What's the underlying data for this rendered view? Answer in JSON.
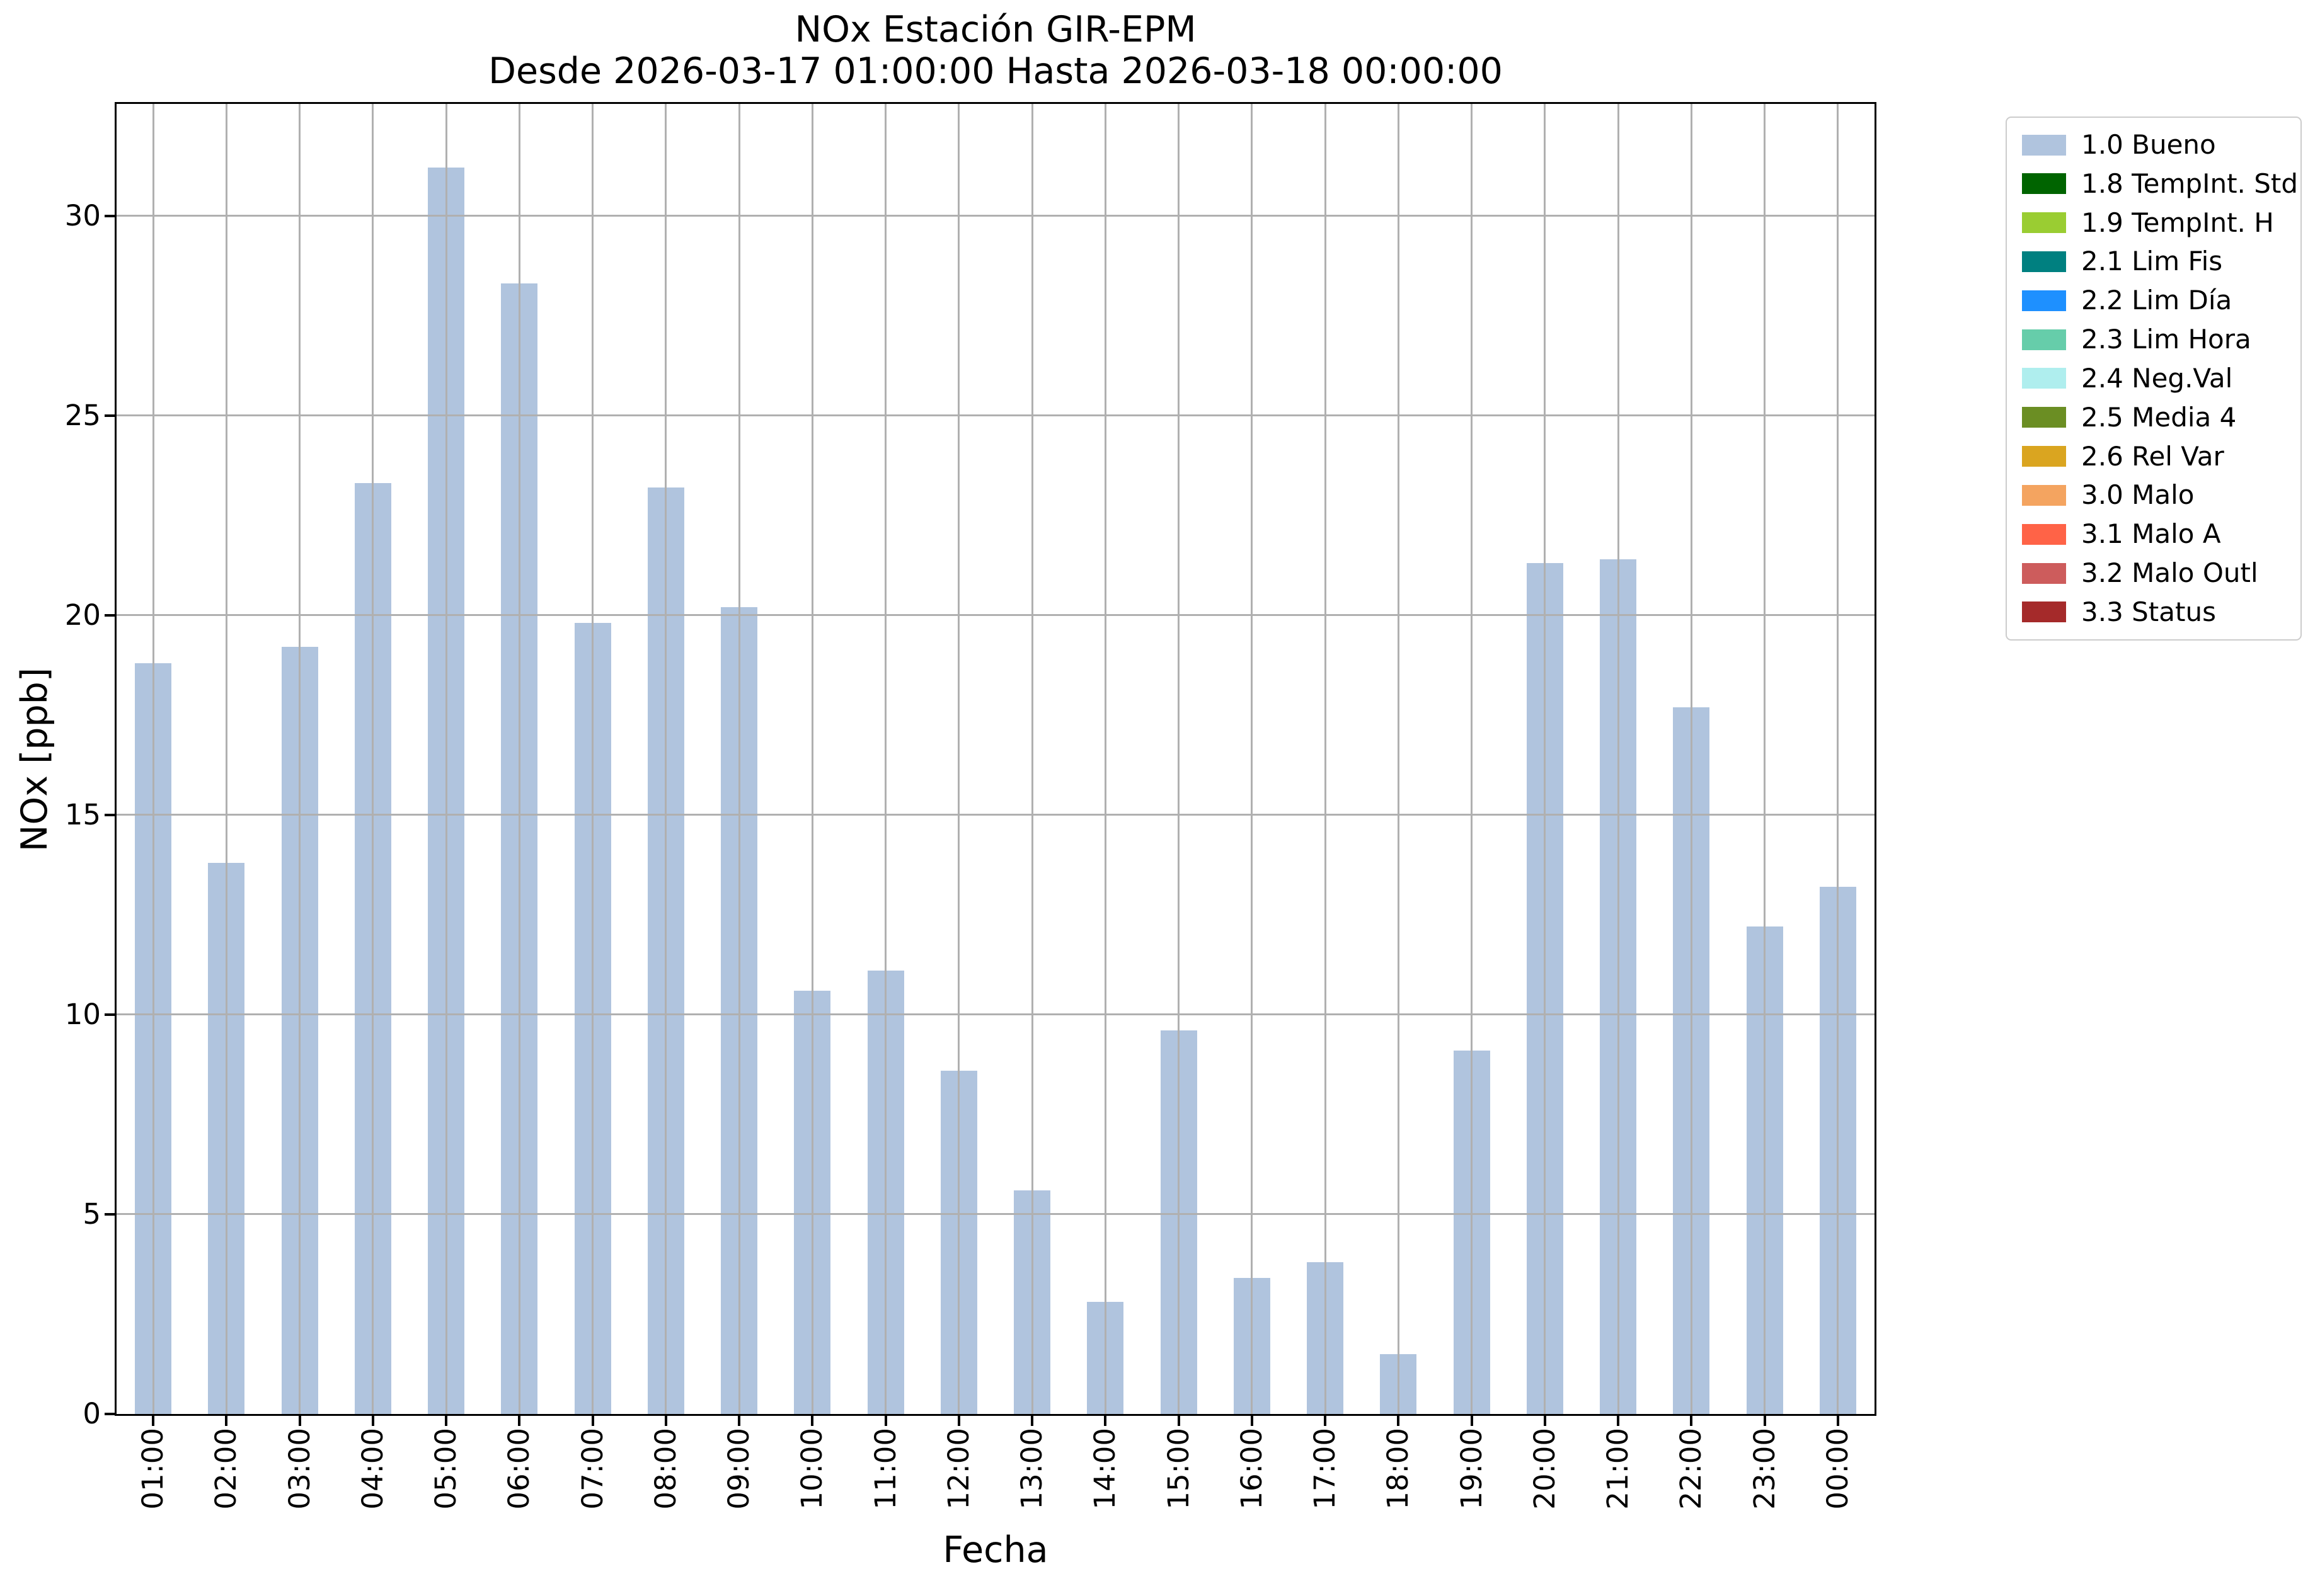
{
  "title": {
    "line1": "NOx Estación GIR-EPM",
    "line2": "Desde 2026-03-17 01:00:00 Hasta 2026-03-18 00:00:00"
  },
  "chart_data": {
    "type": "bar",
    "title": "NOx Estación GIR-EPM",
    "subtitle": "Desde 2026-03-17 01:00:00 Hasta 2026-03-18 00:00:00",
    "xlabel": "Fecha",
    "ylabel": "NOx [ppb]",
    "categories": [
      "01:00",
      "02:00",
      "03:00",
      "04:00",
      "05:00",
      "06:00",
      "07:00",
      "08:00",
      "09:00",
      "10:00",
      "11:00",
      "12:00",
      "13:00",
      "14:00",
      "15:00",
      "16:00",
      "17:00",
      "18:00",
      "19:00",
      "20:00",
      "21:00",
      "22:00",
      "23:00",
      "00:00"
    ],
    "values": [
      18.8,
      13.8,
      19.2,
      23.3,
      31.2,
      28.3,
      19.8,
      23.2,
      20.2,
      10.6,
      11.1,
      8.6,
      5.6,
      2.8,
      9.6,
      3.4,
      3.8,
      1.5,
      9.1,
      21.3,
      21.4,
      17.7,
      12.2,
      13.2
    ],
    "ylim": [
      0,
      32.8
    ],
    "yticks": [
      0,
      5,
      10,
      15,
      20,
      25,
      30
    ],
    "grid": true,
    "legend_position": "upper-right-outside",
    "bar_color": "#b0c4de",
    "grid_color": "#b0b0b0",
    "legend": [
      {
        "label": "1.0 Bueno",
        "color": "#b0c4de"
      },
      {
        "label": "1.8 TempInt. Std",
        "color": "#006400"
      },
      {
        "label": "1.9 TempInt. H",
        "color": "#9acd32"
      },
      {
        "label": "2.1 Lim Fis",
        "color": "#008080"
      },
      {
        "label": "2.2 Lim Día",
        "color": "#1e90ff"
      },
      {
        "label": "2.3 Lim Hora",
        "color": "#66cdaa"
      },
      {
        "label": "2.4 Neg.Val",
        "color": "#afeeee"
      },
      {
        "label": "2.5 Media 4",
        "color": "#6b8e23"
      },
      {
        "label": "2.6 Rel Var",
        "color": "#daa520"
      },
      {
        "label": "3.0 Malo",
        "color": "#f4a460"
      },
      {
        "label": "3.1 Malo A",
        "color": "#ff6347"
      },
      {
        "label": "3.2 Malo Outl",
        "color": "#cd5c5c"
      },
      {
        "label": "3.3 Status",
        "color": "#a52a2a"
      }
    ]
  }
}
